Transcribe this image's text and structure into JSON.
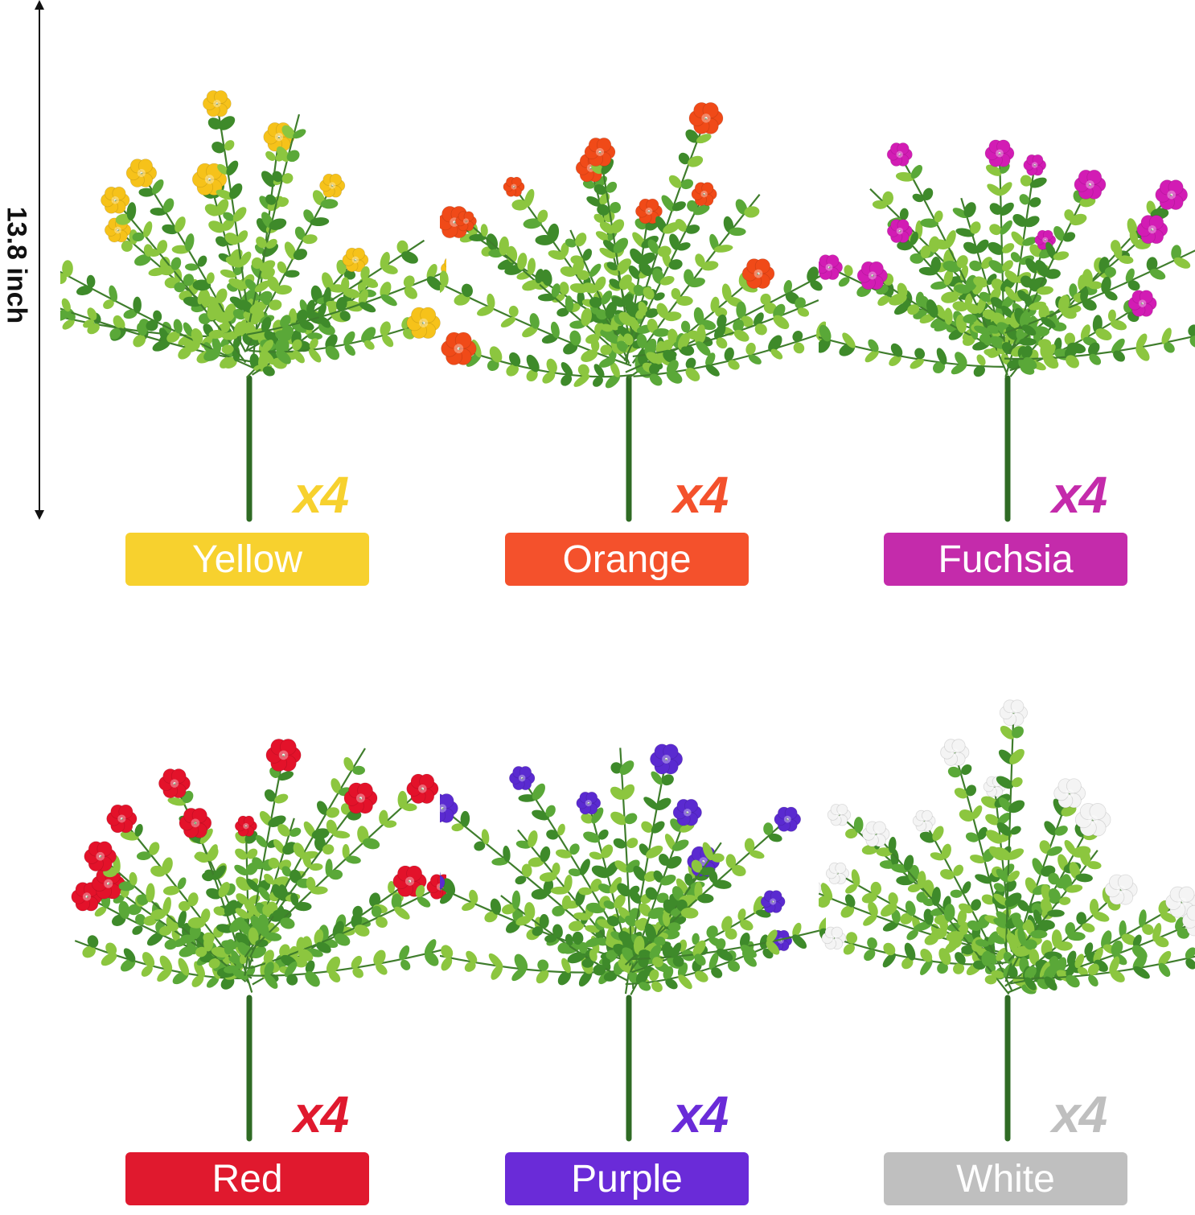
{
  "dimension": {
    "label": "13.8 inch"
  },
  "products": [
    {
      "color_name": "Yellow",
      "quantity": "x4",
      "color": "#f7d12e",
      "flower_color": "#f6c21a"
    },
    {
      "color_name": "Orange",
      "quantity": "x4",
      "color": "#f4512c",
      "flower_color": "#f04a18"
    },
    {
      "color_name": "Fuchsia",
      "quantity": "x4",
      "color": "#c42bab",
      "flower_color": "#d21cb4"
    },
    {
      "color_name": "Red",
      "quantity": "x4",
      "color": "#e0192e",
      "flower_color": "#e3122a"
    },
    {
      "color_name": "Purple",
      "quantity": "x4",
      "color": "#6a2bd8",
      "flower_color": "#5a2ad0"
    },
    {
      "color_name": "White",
      "quantity": "x4",
      "color": "#bfbfbf",
      "flower_color": "#f4f4f4"
    }
  ]
}
